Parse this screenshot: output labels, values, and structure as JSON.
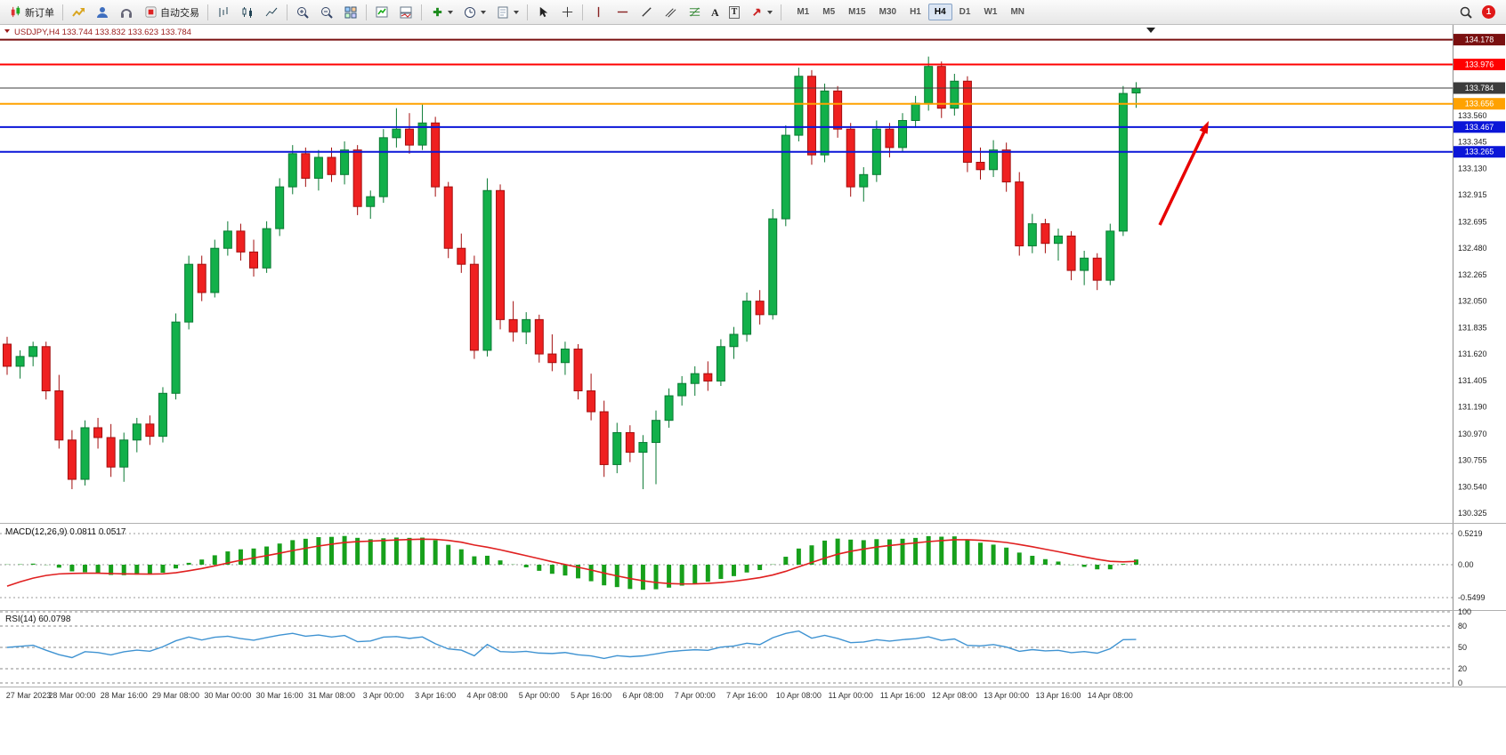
{
  "toolbar": {
    "new_order_label": "新订单",
    "auto_trading_label": "自动交易",
    "timeframes": [
      "M1",
      "M5",
      "M15",
      "M30",
      "H1",
      "H4",
      "D1",
      "W1",
      "MN"
    ],
    "active_timeframe": "H4",
    "text_tool_glyph": "A",
    "label_tool_glyph": "T",
    "notification_count": "1"
  },
  "chart": {
    "title": "USDJPY,H4 133.744 133.832 133.623 133.784"
  },
  "annotation": {
    "type": "arrow",
    "color": "#e80000"
  },
  "chart_data": {
    "type": "candlestick",
    "symbol": "USDJPY",
    "timeframe": "H4",
    "last": {
      "open": 133.744,
      "high": 133.832,
      "low": 133.623,
      "close": 133.784
    },
    "ylim": [
      130.26,
      134.24
    ],
    "label_start": 1,
    "label_every": 4,
    "x_labels": [
      "27 Mar 2023",
      "28 Mar 00:00",
      "28 Mar 16:00",
      "29 Mar 08:00",
      "30 Mar 00:00",
      "30 Mar 16:00",
      "31 Mar 08:00",
      "3 Apr 00:00",
      "3 Apr 16:00",
      "4 Apr 08:00",
      "5 Apr 00:00",
      "5 Apr 16:00",
      "6 Apr 08:00",
      "7 Apr 00:00",
      "7 Apr 16:00",
      "10 Apr 08:00",
      "11 Apr 00:00",
      "11 Apr 16:00",
      "12 Apr 08:00",
      "13 Apr 00:00",
      "13 Apr 16:00",
      "14 Apr 08:00"
    ],
    "price_ticks": [
      "133.560",
      "133.345",
      "133.130",
      "132.915",
      "132.695",
      "132.480",
      "132.265",
      "132.050",
      "131.835",
      "131.620",
      "131.405",
      "131.190",
      "130.970",
      "130.755",
      "130.540",
      "130.325"
    ],
    "levels": [
      {
        "price": 134.178,
        "label": "134.178",
        "color": "#7a1010",
        "badge": "#7a1010",
        "width": 2
      },
      {
        "price": 133.976,
        "label": "133.976",
        "color": "#ff0000",
        "badge": "#ff0000",
        "width": 2
      },
      {
        "price": 133.784,
        "label": "133.784",
        "color": "#3c3c3c",
        "badge": "#3c3c3c",
        "width": 1
      },
      {
        "price": 133.656,
        "label": "133.656",
        "color": "#ffa200",
        "badge": "#ffa200",
        "width": 2
      },
      {
        "price": 133.467,
        "label": "133.467",
        "color": "#0b16d8",
        "badge": "#0b16d8",
        "width": 2
      },
      {
        "price": 133.265,
        "label": "133.265",
        "color": "#0b16d8",
        "badge": "#0b16d8",
        "width": 2
      }
    ],
    "candles": [
      [
        131.7,
        131.76,
        131.45,
        131.52
      ],
      [
        131.52,
        131.65,
        131.42,
        131.6
      ],
      [
        131.6,
        131.72,
        131.52,
        131.68
      ],
      [
        131.68,
        131.72,
        131.25,
        131.32
      ],
      [
        131.32,
        131.45,
        130.85,
        130.92
      ],
      [
        130.92,
        131.0,
        130.52,
        130.6
      ],
      [
        130.6,
        131.08,
        130.55,
        131.02
      ],
      [
        131.02,
        131.1,
        130.85,
        130.94
      ],
      [
        130.94,
        131.05,
        130.62,
        130.7
      ],
      [
        130.7,
        130.98,
        130.58,
        130.92
      ],
      [
        130.92,
        131.1,
        130.82,
        131.05
      ],
      [
        131.05,
        131.12,
        130.88,
        130.95
      ],
      [
        130.95,
        131.35,
        130.9,
        131.3
      ],
      [
        131.3,
        131.95,
        131.25,
        131.88
      ],
      [
        131.88,
        132.42,
        131.82,
        132.35
      ],
      [
        132.35,
        132.42,
        132.05,
        132.12
      ],
      [
        132.12,
        132.55,
        132.08,
        132.48
      ],
      [
        132.48,
        132.7,
        132.42,
        132.62
      ],
      [
        132.62,
        132.68,
        132.38,
        132.45
      ],
      [
        132.45,
        132.55,
        132.25,
        132.32
      ],
      [
        132.32,
        132.7,
        132.28,
        132.64
      ],
      [
        132.64,
        133.05,
        132.58,
        132.98
      ],
      [
        132.98,
        133.32,
        132.92,
        133.25
      ],
      [
        133.25,
        133.3,
        132.98,
        133.05
      ],
      [
        133.05,
        133.28,
        132.95,
        133.22
      ],
      [
        133.22,
        133.3,
        133.02,
        133.08
      ],
      [
        133.08,
        133.35,
        133.0,
        133.28
      ],
      [
        133.28,
        133.32,
        132.75,
        132.82
      ],
      [
        132.82,
        132.95,
        132.72,
        132.9
      ],
      [
        132.9,
        133.45,
        132.85,
        133.38
      ],
      [
        133.38,
        133.62,
        133.3,
        133.45
      ],
      [
        133.45,
        133.58,
        133.25,
        133.32
      ],
      [
        133.32,
        133.65,
        133.28,
        133.5
      ],
      [
        133.5,
        133.55,
        132.9,
        132.98
      ],
      [
        132.98,
        133.02,
        132.4,
        132.48
      ],
      [
        132.48,
        132.6,
        132.28,
        132.35
      ],
      [
        132.35,
        132.42,
        131.58,
        131.65
      ],
      [
        131.65,
        133.05,
        131.6,
        132.95
      ],
      [
        132.95,
        133.0,
        131.82,
        131.9
      ],
      [
        131.9,
        132.05,
        131.72,
        131.8
      ],
      [
        131.8,
        131.96,
        131.7,
        131.9
      ],
      [
        131.9,
        131.94,
        131.55,
        131.62
      ],
      [
        131.62,
        131.78,
        131.48,
        131.55
      ],
      [
        131.55,
        131.72,
        131.45,
        131.66
      ],
      [
        131.66,
        131.7,
        131.25,
        131.32
      ],
      [
        131.32,
        131.46,
        131.08,
        131.15
      ],
      [
        131.15,
        131.24,
        130.62,
        130.72
      ],
      [
        130.72,
        131.06,
        130.65,
        130.98
      ],
      [
        130.98,
        131.04,
        130.74,
        130.82
      ],
      [
        130.82,
        130.96,
        130.52,
        130.9
      ],
      [
        130.9,
        131.16,
        130.56,
        131.08
      ],
      [
        131.08,
        131.34,
        131.02,
        131.28
      ],
      [
        131.28,
        131.44,
        131.2,
        131.38
      ],
      [
        131.38,
        131.52,
        131.28,
        131.46
      ],
      [
        131.46,
        131.56,
        131.32,
        131.4
      ],
      [
        131.4,
        131.74,
        131.36,
        131.68
      ],
      [
        131.68,
        131.84,
        131.58,
        131.78
      ],
      [
        131.78,
        132.12,
        131.72,
        132.05
      ],
      [
        132.05,
        132.14,
        131.86,
        131.94
      ],
      [
        131.94,
        132.8,
        131.9,
        132.72
      ],
      [
        132.72,
        133.48,
        132.66,
        133.4
      ],
      [
        133.4,
        133.95,
        133.35,
        133.88
      ],
      [
        133.88,
        133.93,
        133.16,
        133.24
      ],
      [
        133.24,
        133.82,
        133.18,
        133.76
      ],
      [
        133.76,
        133.8,
        133.38,
        133.45
      ],
      [
        133.45,
        133.5,
        132.9,
        132.98
      ],
      [
        132.98,
        133.14,
        132.86,
        133.08
      ],
      [
        133.08,
        133.52,
        133.02,
        133.45
      ],
      [
        133.45,
        133.5,
        133.22,
        133.3
      ],
      [
        133.3,
        133.58,
        133.26,
        133.52
      ],
      [
        133.52,
        133.72,
        133.46,
        133.66
      ],
      [
        133.66,
        134.04,
        133.6,
        133.96
      ],
      [
        133.96,
        134.0,
        133.54,
        133.62
      ],
      [
        133.62,
        133.9,
        133.56,
        133.84
      ],
      [
        133.84,
        133.88,
        133.1,
        133.18
      ],
      [
        133.18,
        133.3,
        133.04,
        133.12
      ],
      [
        133.12,
        133.36,
        133.06,
        133.28
      ],
      [
        133.28,
        133.34,
        132.94,
        133.02
      ],
      [
        133.02,
        133.1,
        132.42,
        132.5
      ],
      [
        132.5,
        132.76,
        132.44,
        132.68
      ],
      [
        132.68,
        132.72,
        132.44,
        132.52
      ],
      [
        132.52,
        132.64,
        132.38,
        132.58
      ],
      [
        132.58,
        132.62,
        132.22,
        132.3
      ],
      [
        132.3,
        132.46,
        132.18,
        132.4
      ],
      [
        132.4,
        132.44,
        132.14,
        132.22
      ],
      [
        132.22,
        132.68,
        132.18,
        132.62
      ],
      [
        132.62,
        133.8,
        132.58,
        133.74
      ],
      [
        133.744,
        133.832,
        133.623,
        133.784
      ]
    ],
    "indicators": {
      "macd": {
        "label": "MACD(12,26,9)",
        "values": "0.0811 0.0517",
        "fast": 12,
        "slow": 26,
        "signal": 9,
        "scale": [
          "0.5219",
          "0.00",
          "-0.5499"
        ]
      },
      "rsi": {
        "label": "RSI(14)",
        "value": "60.0798",
        "period": 14,
        "scale": [
          "100",
          "80",
          "50",
          "20",
          "0"
        ]
      }
    }
  }
}
